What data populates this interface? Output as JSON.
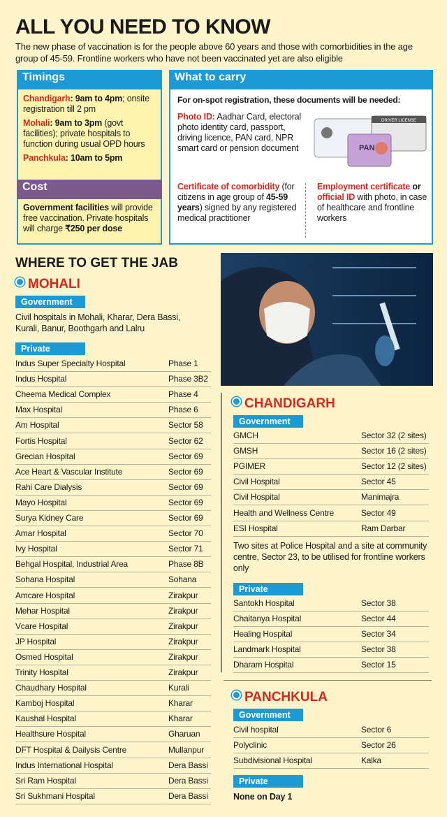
{
  "title": "ALL YOU NEED TO KNOW",
  "intro": "The new phase of vaccination is for the people above 60 years and those with comorbidities in the age group of 45-59. Frontline workers who have not been vaccinated yet are also eligible",
  "timings": {
    "heading": "Timings",
    "items": [
      {
        "place": "Chandigarh",
        "hours": ": 9am to 4pm",
        "note": "; onsite registration till 2 pm"
      },
      {
        "place": "Mohali",
        "hours": ": 9am to 3pm",
        "note": " (govt facilities); private hospitals to function during usual OPD hours"
      },
      {
        "place": "Panchkula",
        "hours": ": 10am to 5pm"
      }
    ]
  },
  "cost": {
    "heading": "Cost",
    "parts": [
      "Government facilities",
      " will provide free vaccination. Private hospitals will charge ",
      "₹250 per dose"
    ]
  },
  "carry": {
    "heading": "What to carry",
    "lead": "For on-spot registration, these documents will be needed:",
    "photo_id": [
      "Photo ID:",
      " Aadhar Card, electoral photo identity card, passport, driving licence, PAN card, NPR smart card or pension document"
    ],
    "comorbidity": [
      "Certificate of comorbidity",
      " (for citizens in age group of ",
      "45-59 years",
      ") signed by any registered medical practitioner"
    ],
    "employment": [
      "Employment certificate",
      " or ",
      "official ID",
      " with photo, in case of healthcare and frontline workers"
    ],
    "card_labels": [
      "DRIVER LICENSE",
      "PAN"
    ]
  },
  "jab_heading": "WHERE TO GET THE JAB",
  "mohali": {
    "name": "MOHALI",
    "government_label": "Government",
    "government": "Civil hospitals in Mohali, Kharar, Dera Bassi, Kurali, Banur, Boothgarh and Lalru",
    "private_label": "Private",
    "private": [
      [
        "Indus Super Specialty Hospital",
        "Phase 1"
      ],
      [
        "Indus Hospital",
        "Phase 3B2"
      ],
      [
        "Cheema Medical Complex",
        "Phase 4"
      ],
      [
        "Max Hospital",
        "Phase 6"
      ],
      [
        "Am Hospital",
        "Sector 58"
      ],
      [
        "Fortis Hospital",
        "Sector 62"
      ],
      [
        "Grecian Hospital",
        "Sector 69"
      ],
      [
        "Ace Heart & Vascular Institute",
        "Sector 69"
      ],
      [
        "Rahi Care Dialysis",
        "Sector 69"
      ],
      [
        "Mayo Hospital",
        "Sector 69"
      ],
      [
        "Surya Kidney Care",
        "Sector 69"
      ],
      [
        "Amar Hospital",
        "Sector 70"
      ],
      [
        "Ivy Hospital",
        "Sector 71"
      ],
      [
        "Behgal Hospital, Industrial Area",
        "Phase 8B"
      ],
      [
        "Sohana Hospital",
        "Sohana"
      ],
      [
        "Amcare Hospital",
        "Zirakpur"
      ],
      [
        "Mehar Hospital",
        "Zirakpur"
      ],
      [
        "Vcare Hospital",
        "Zirakpur"
      ],
      [
        "JP Hospital",
        "Zirakpur"
      ],
      [
        "Osmed Hospital",
        "Zirakpur"
      ],
      [
        "Trinity Hospital",
        "Zirakpur"
      ],
      [
        "Chaudhary Hospital",
        "Kurali"
      ],
      [
        "Kamboj Hospital",
        "Kharar"
      ],
      [
        "Kaushal Hospital",
        "Kharar"
      ],
      [
        "Healthsure Hospital",
        "Gharuan"
      ],
      [
        "DFT Hospital & Dailysis Centre",
        "Mullanpur"
      ],
      [
        "Indus International Hospital",
        "Dera Bassi"
      ],
      [
        "Sri Ram Hospital",
        "Dera Bassi"
      ],
      [
        "Sri Sukhmani Hospital",
        "Dera Bassi"
      ]
    ]
  },
  "chandigarh": {
    "name": "CHANDIGARH",
    "government_label": "Government",
    "government": [
      [
        "GMCH",
        "Sector 32 (2 sites)"
      ],
      [
        "GMSH",
        "Sector 16 (2 sites)"
      ],
      [
        "PGIMER",
        "Sector 12 (2 sites)"
      ],
      [
        "Civil Hospital",
        "Sector 45"
      ],
      [
        "Civil Hospital",
        "Manimajra"
      ],
      [
        "Health and Wellness Centre",
        "Sector 49"
      ],
      [
        "ESI Hospital",
        "Ram Darbar"
      ]
    ],
    "note": "Two sites at Police Hospital and a site at community centre, Sector 23, to be utilised for frontline workers only",
    "private_label": "Private",
    "private": [
      [
        "Santokh Hospital",
        "Sector 38"
      ],
      [
        "Chaitanya Hospital",
        "Sector 44"
      ],
      [
        "Healing Hospital",
        "Sector 34"
      ],
      [
        "Landmark Hospital",
        "Sector 38"
      ],
      [
        "Dharam Hospital",
        "Sector 15"
      ]
    ]
  },
  "panchkula": {
    "name": "PANCHKULA",
    "government_label": "Government",
    "government": [
      [
        "Civil hospital",
        "Sector 6"
      ],
      [
        "Polyclinic",
        "Sector 26"
      ],
      [
        "Subdivisional Hospital",
        "Kalka"
      ]
    ],
    "private_label": "Private",
    "private_note": "None on Day 1"
  }
}
